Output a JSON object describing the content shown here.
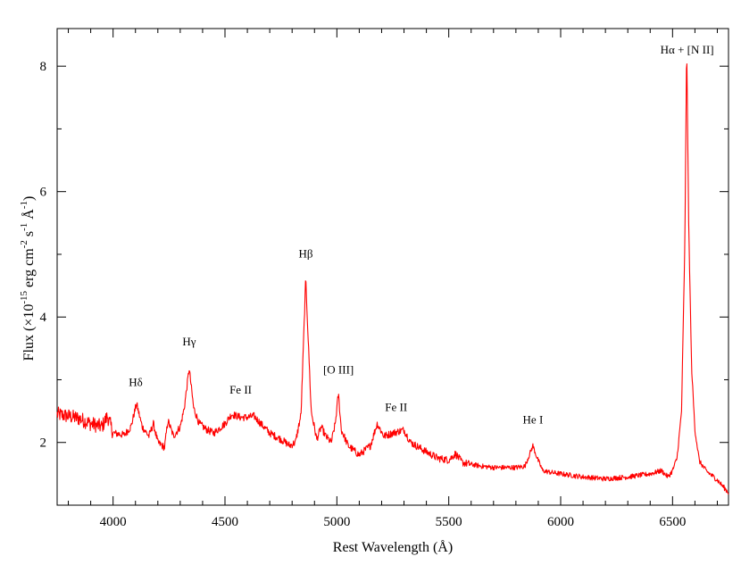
{
  "chart_data": {
    "type": "line",
    "title": "",
    "xlabel": "Rest Wavelength (Å)",
    "ylabel_parts": {
      "base": "Flux (×10",
      "exp1": "-15",
      "unit1": " erg cm",
      "exp2": "-2",
      "unit2": " s",
      "exp3": "-1",
      "unit3": " Å",
      "exp4": "-1",
      "close": ")"
    },
    "xlim": [
      3750,
      6750
    ],
    "ylim": [
      1.0,
      8.6
    ],
    "xticks": [
      4000,
      4500,
      5000,
      5500,
      6000,
      6500
    ],
    "xtick_labels": [
      "4000",
      "4500",
      "5000",
      "5500",
      "6000",
      "6500"
    ],
    "yticks": [
      2,
      4,
      6,
      8
    ],
    "ytick_labels": [
      "2",
      "4",
      "6",
      "8"
    ],
    "grid": false,
    "line_color": "#ff0000",
    "continuum": [
      [
        3750,
        2.45
      ],
      [
        3800,
        2.42
      ],
      [
        3850,
        2.38
      ],
      [
        3900,
        2.3
      ],
      [
        3950,
        2.25
      ],
      [
        3975,
        2.42
      ],
      [
        4000,
        2.15
      ],
      [
        4050,
        2.12
      ],
      [
        4080,
        2.25
      ],
      [
        4105,
        2.62
      ],
      [
        4130,
        2.25
      ],
      [
        4160,
        2.1
      ],
      [
        4180,
        2.3
      ],
      [
        4200,
        2.0
      ],
      [
        4230,
        1.92
      ],
      [
        4245,
        2.35
      ],
      [
        4270,
        2.1
      ],
      [
        4300,
        2.25
      ],
      [
        4318,
        2.55
      ],
      [
        4340,
        3.18
      ],
      [
        4360,
        2.55
      ],
      [
        4385,
        2.3
      ],
      [
        4420,
        2.2
      ],
      [
        4450,
        2.15
      ],
      [
        4500,
        2.3
      ],
      [
        4530,
        2.45
      ],
      [
        4570,
        2.4
      ],
      [
        4600,
        2.4
      ],
      [
        4630,
        2.42
      ],
      [
        4660,
        2.3
      ],
      [
        4700,
        2.15
      ],
      [
        4750,
        2.05
      ],
      [
        4790,
        1.95
      ],
      [
        4815,
        2.0
      ],
      [
        4840,
        2.45
      ],
      [
        4861,
        4.62
      ],
      [
        4885,
        2.5
      ],
      [
        4910,
        2.05
      ],
      [
        4930,
        2.25
      ],
      [
        4950,
        2.1
      ],
      [
        4975,
        2.0
      ],
      [
        4993,
        2.3
      ],
      [
        5007,
        2.78
      ],
      [
        5020,
        2.2
      ],
      [
        5050,
        1.95
      ],
      [
        5100,
        1.8
      ],
      [
        5150,
        1.95
      ],
      [
        5180,
        2.3
      ],
      [
        5210,
        2.1
      ],
      [
        5250,
        2.15
      ],
      [
        5300,
        2.2
      ],
      [
        5330,
        2.0
      ],
      [
        5400,
        1.85
      ],
      [
        5450,
        1.75
      ],
      [
        5500,
        1.72
      ],
      [
        5530,
        1.82
      ],
      [
        5560,
        1.68
      ],
      [
        5600,
        1.65
      ],
      [
        5650,
        1.62
      ],
      [
        5700,
        1.6
      ],
      [
        5750,
        1.6
      ],
      [
        5800,
        1.6
      ],
      [
        5840,
        1.62
      ],
      [
        5860,
        1.8
      ],
      [
        5876,
        1.95
      ],
      [
        5895,
        1.75
      ],
      [
        5920,
        1.55
      ],
      [
        5960,
        1.52
      ],
      [
        6000,
        1.5
      ],
      [
        6100,
        1.45
      ],
      [
        6200,
        1.42
      ],
      [
        6300,
        1.45
      ],
      [
        6400,
        1.5
      ],
      [
        6450,
        1.55
      ],
      [
        6480,
        1.45
      ],
      [
        6500,
        1.55
      ],
      [
        6520,
        1.75
      ],
      [
        6540,
        2.5
      ],
      [
        6555,
        5.2
      ],
      [
        6563,
        8.38
      ],
      [
        6572,
        5.5
      ],
      [
        6585,
        3.2
      ],
      [
        6600,
        2.2
      ],
      [
        6620,
        1.7
      ],
      [
        6650,
        1.55
      ],
      [
        6700,
        1.4
      ],
      [
        6750,
        1.2
      ]
    ],
    "annotations": [
      {
        "text": "Hδ",
        "x": 4101,
        "y": 2.9
      },
      {
        "text": "Hγ",
        "x": 4340,
        "y": 3.55
      },
      {
        "text": "Fe II",
        "x": 4570,
        "y": 2.78
      },
      {
        "text": "Hβ",
        "x": 4861,
        "y": 4.95
      },
      {
        "text": "[O III]",
        "x": 5007,
        "y": 3.1
      },
      {
        "text": "Fe II",
        "x": 5265,
        "y": 2.5
      },
      {
        "text": "He I",
        "x": 5876,
        "y": 2.3
      },
      {
        "text": "Hα + [N II]",
        "x": 6565,
        "y": 8.2
      }
    ]
  }
}
